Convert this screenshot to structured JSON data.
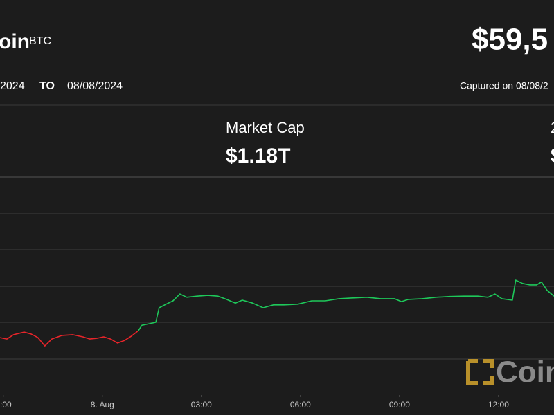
{
  "header": {
    "name": "oin",
    "symbol": "BTC",
    "price": "$59,5",
    "date_from": "2024",
    "to_label": "TO",
    "date_to": "08/08/2024",
    "captured": "Captured on 08/08/2"
  },
  "stats": [
    {
      "label": "Market Cap",
      "value": "$1.18T"
    },
    {
      "label": "2",
      "value": "$"
    }
  ],
  "watermark": "Coin",
  "chart_data": {
    "type": "line",
    "x": [
      -3.1,
      -2.89,
      -2.69,
      -2.37,
      -2.16,
      -1.95,
      -1.74,
      -1.53,
      -1.22,
      -0.9,
      -0.59,
      -0.38,
      -0.17,
      0.04,
      0.25,
      0.46,
      0.67,
      0.88,
      1.09,
      1.2,
      1.41,
      1.62,
      1.72,
      1.93,
      2.14,
      2.35,
      2.56,
      2.87,
      3.19,
      3.5,
      3.71,
      4.03,
      4.24,
      4.55,
      4.87,
      5.18,
      5.5,
      5.92,
      6.34,
      6.75,
      7.17,
      7.59,
      8.01,
      8.43,
      8.85,
      9.06,
      9.27,
      9.69,
      10.11,
      10.53,
      10.95,
      11.37,
      11.68,
      11.89,
      12.1,
      12.42,
      12.52,
      12.73,
      12.94,
      13.15,
      13.3,
      13.47,
      13.68
    ],
    "series": [
      {
        "name": "down",
        "color": "#e8252a",
        "values": [
          57580,
          57540,
          57660,
          57730,
          57680,
          57580,
          57350,
          57540,
          57640,
          57660,
          57600,
          57540,
          57560,
          57600,
          57540,
          57430,
          57500,
          57620,
          57770,
          null,
          null,
          null,
          null,
          null,
          null,
          null,
          null,
          null,
          null,
          null,
          null,
          null,
          null,
          null,
          null,
          null,
          null,
          null,
          null,
          null,
          null,
          null,
          null,
          null,
          null,
          null,
          null,
          null,
          null,
          null,
          null,
          null,
          null,
          null,
          null,
          null,
          null,
          null,
          null,
          null,
          null,
          null,
          null
        ]
      },
      {
        "name": "up",
        "color": "#1ec85a",
        "values": [
          null,
          null,
          null,
          null,
          null,
          null,
          null,
          null,
          null,
          null,
          null,
          null,
          null,
          null,
          null,
          null,
          null,
          null,
          57770,
          57920,
          57960,
          58000,
          58400,
          58500,
          58590,
          58780,
          58690,
          58720,
          58740,
          58720,
          58650,
          58530,
          58610,
          58530,
          58400,
          58480,
          58480,
          58500,
          58590,
          58590,
          58650,
          58670,
          58690,
          58650,
          58650,
          58570,
          58630,
          58650,
          58690,
          58710,
          58720,
          58720,
          58690,
          58780,
          58650,
          58610,
          59160,
          59070,
          59030,
          59030,
          59110,
          58880,
          58720
        ]
      }
    ],
    "xlim": [
      -3.1,
      13.68
    ],
    "ylim": [
      56000,
      62000
    ],
    "xticks": [
      {
        "value": -3,
        "label": ":00"
      },
      {
        "value": 0,
        "label": "8. Aug"
      },
      {
        "value": 3,
        "label": "03:00"
      },
      {
        "value": 6,
        "label": "06:00"
      },
      {
        "value": 9,
        "label": "09:00"
      },
      {
        "value": 12,
        "label": "12:00"
      }
    ]
  }
}
